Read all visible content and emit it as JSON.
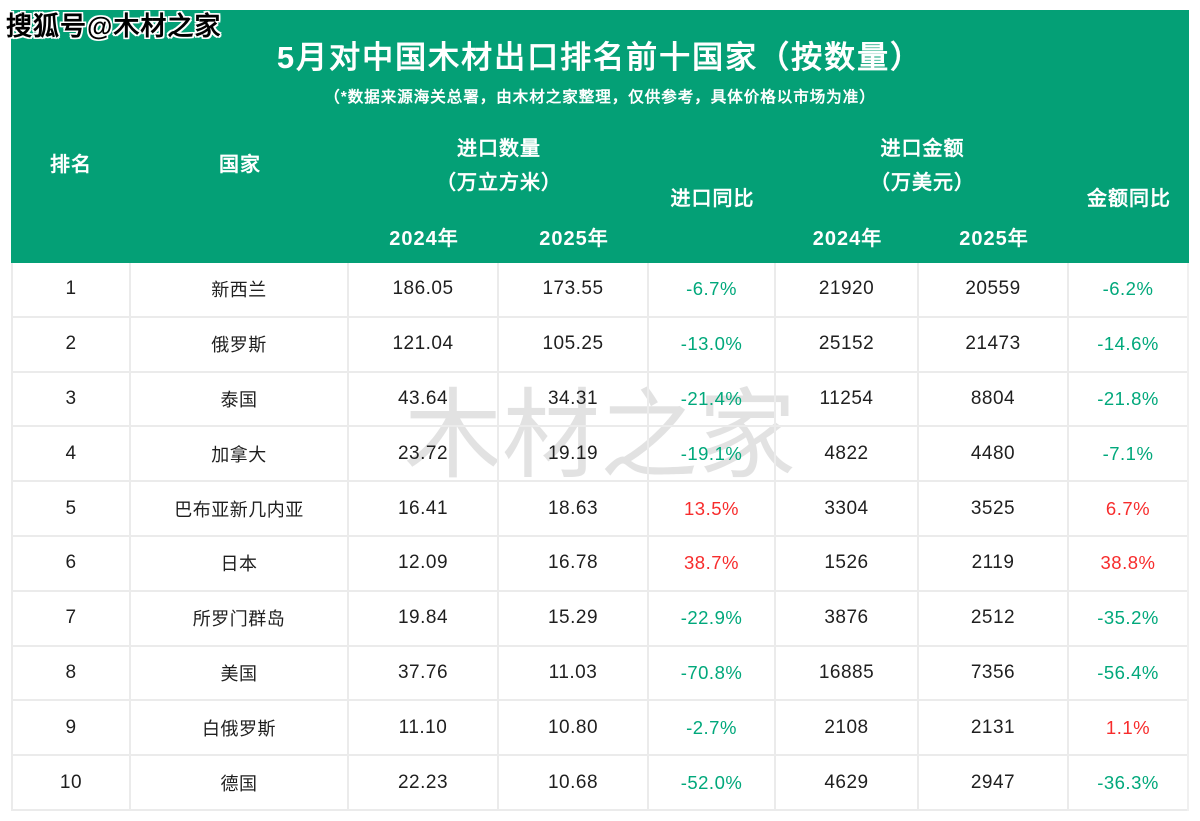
{
  "badge": "搜狐号@木材之家",
  "watermark": "木材之家",
  "header": {
    "title": "5月对中国木材出口排名前十国家（按数量）",
    "subtitle": "（*数据来源海关总署，由木材之家整理，仅供参考，具体价格以市场为准）"
  },
  "table": {
    "header": {
      "rank": "排名",
      "country": "国家",
      "qty_group": "进口数量",
      "qty_unit": "（万立方米）",
      "qty_yoy": "进口同比",
      "amt_group": "进口金额",
      "amt_unit": "（万美元）",
      "amt_yoy": "金额同比",
      "year_2024": "2024年",
      "year_2025": "2025年"
    },
    "rows": [
      {
        "rank": "1",
        "country": "新西兰",
        "q2024": "186.05",
        "q2025": "173.55",
        "q_yoy": "-6.7%",
        "q_yoy_dir": "down",
        "a2024": "21920",
        "a2025": "20559",
        "a_yoy": "-6.2%",
        "a_yoy_dir": "down"
      },
      {
        "rank": "2",
        "country": "俄罗斯",
        "q2024": "121.04",
        "q2025": "105.25",
        "q_yoy": "-13.0%",
        "q_yoy_dir": "down",
        "a2024": "25152",
        "a2025": "21473",
        "a_yoy": "-14.6%",
        "a_yoy_dir": "down"
      },
      {
        "rank": "3",
        "country": "泰国",
        "q2024": "43.64",
        "q2025": "34.31",
        "q_yoy": "-21.4%",
        "q_yoy_dir": "down",
        "a2024": "11254",
        "a2025": "8804",
        "a_yoy": "-21.8%",
        "a_yoy_dir": "down"
      },
      {
        "rank": "4",
        "country": "加拿大",
        "q2024": "23.72",
        "q2025": "19.19",
        "q_yoy": "-19.1%",
        "q_yoy_dir": "down",
        "a2024": "4822",
        "a2025": "4480",
        "a_yoy": "-7.1%",
        "a_yoy_dir": "down"
      },
      {
        "rank": "5",
        "country": "巴布亚新几内亚",
        "q2024": "16.41",
        "q2025": "18.63",
        "q_yoy": "13.5%",
        "q_yoy_dir": "up",
        "a2024": "3304",
        "a2025": "3525",
        "a_yoy": "6.7%",
        "a_yoy_dir": "up"
      },
      {
        "rank": "6",
        "country": "日本",
        "q2024": "12.09",
        "q2025": "16.78",
        "q_yoy": "38.7%",
        "q_yoy_dir": "up",
        "a2024": "1526",
        "a2025": "2119",
        "a_yoy": "38.8%",
        "a_yoy_dir": "up"
      },
      {
        "rank": "7",
        "country": "所罗门群岛",
        "q2024": "19.84",
        "q2025": "15.29",
        "q_yoy": "-22.9%",
        "q_yoy_dir": "down",
        "a2024": "3876",
        "a2025": "2512",
        "a_yoy": "-35.2%",
        "a_yoy_dir": "down"
      },
      {
        "rank": "8",
        "country": "美国",
        "q2024": "37.76",
        "q2025": "11.03",
        "q_yoy": "-70.8%",
        "q_yoy_dir": "down",
        "a2024": "16885",
        "a2025": "7356",
        "a_yoy": "-56.4%",
        "a_yoy_dir": "down"
      },
      {
        "rank": "9",
        "country": "白俄罗斯",
        "q2024": "11.10",
        "q2025": "10.80",
        "q_yoy": "-2.7%",
        "q_yoy_dir": "down",
        "a2024": "2108",
        "a2025": "2131",
        "a_yoy": "1.1%",
        "a_yoy_dir": "up"
      },
      {
        "rank": "10",
        "country": "德国",
        "q2024": "22.23",
        "q2025": "10.68",
        "q_yoy": "-52.0%",
        "q_yoy_dir": "down",
        "a2024": "4629",
        "a2025": "2947",
        "a_yoy": "-36.3%",
        "a_yoy_dir": "down"
      }
    ]
  },
  "colors": {
    "header_green": "#04a076",
    "increase_red": "#f72c2c",
    "decrease_green": "#00a87b",
    "grid_line": "#ebebeb",
    "watermark_gray": "#e2e2e2"
  },
  "chart_data": {
    "type": "table",
    "title": "5月对中国木材出口排名前十国家（按数量）",
    "subtitle": "（*数据来源海关总署，由木材之家整理，仅供参考，具体价格以市场为准）",
    "columns": [
      "排名",
      "国家",
      "进口数量（万立方米）2024年",
      "进口数量（万立方米）2025年",
      "进口同比",
      "进口金额（万美元）2024年",
      "进口金额（万美元）2025年",
      "金额同比"
    ],
    "rows": [
      [
        "1",
        "新西兰",
        186.05,
        173.55,
        "-6.7%",
        21920,
        20559,
        "-6.2%"
      ],
      [
        "2",
        "俄罗斯",
        121.04,
        105.25,
        "-13.0%",
        25152,
        21473,
        "-14.6%"
      ],
      [
        "3",
        "泰国",
        43.64,
        34.31,
        "-21.4%",
        11254,
        8804,
        "-21.8%"
      ],
      [
        "4",
        "加拿大",
        23.72,
        19.19,
        "-19.1%",
        4822,
        4480,
        "-7.1%"
      ],
      [
        "5",
        "巴布亚新几内亚",
        16.41,
        18.63,
        "13.5%",
        3304,
        3525,
        "6.7%"
      ],
      [
        "6",
        "日本",
        12.09,
        16.78,
        "38.7%",
        1526,
        2119,
        "38.8%"
      ],
      [
        "7",
        "所罗门群岛",
        19.84,
        15.29,
        "-22.9%",
        3876,
        2512,
        "-35.2%"
      ],
      [
        "8",
        "美国",
        37.76,
        11.03,
        "-70.8%",
        16885,
        7356,
        "-56.4%"
      ],
      [
        "9",
        "白俄罗斯",
        11.1,
        10.8,
        "-2.7%",
        2108,
        2131,
        "1.1%"
      ],
      [
        "10",
        "德国",
        22.23,
        10.68,
        "-52.0%",
        4629,
        2947,
        "-36.3%"
      ]
    ]
  }
}
